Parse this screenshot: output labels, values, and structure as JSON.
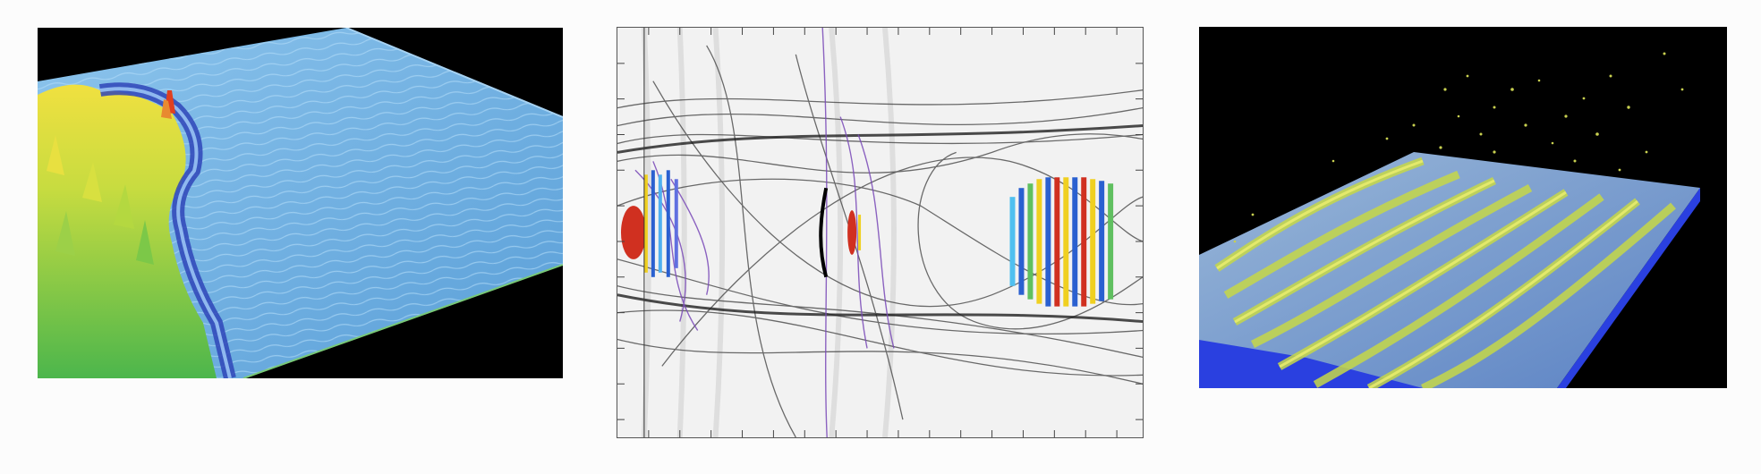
{
  "figure": {
    "panels": [
      {
        "kind": "3D wave surface render",
        "colors": [
          "#000000",
          "#6fb0e0",
          "#3a4fb0",
          "#5fc060",
          "#f2e040",
          "#e04020"
        ]
      },
      {
        "kind": "wave field with particle trajectories",
        "colors": [
          "#f4f4f4",
          "#333333",
          "#7a4ab8",
          "#d03020",
          "#2a60d0",
          "#f0d020"
        ]
      },
      {
        "kind": "3D surface with droplet spray",
        "colors": [
          "#000000",
          "#2a40e0",
          "#b8d040",
          "#e8e070"
        ]
      }
    ]
  }
}
